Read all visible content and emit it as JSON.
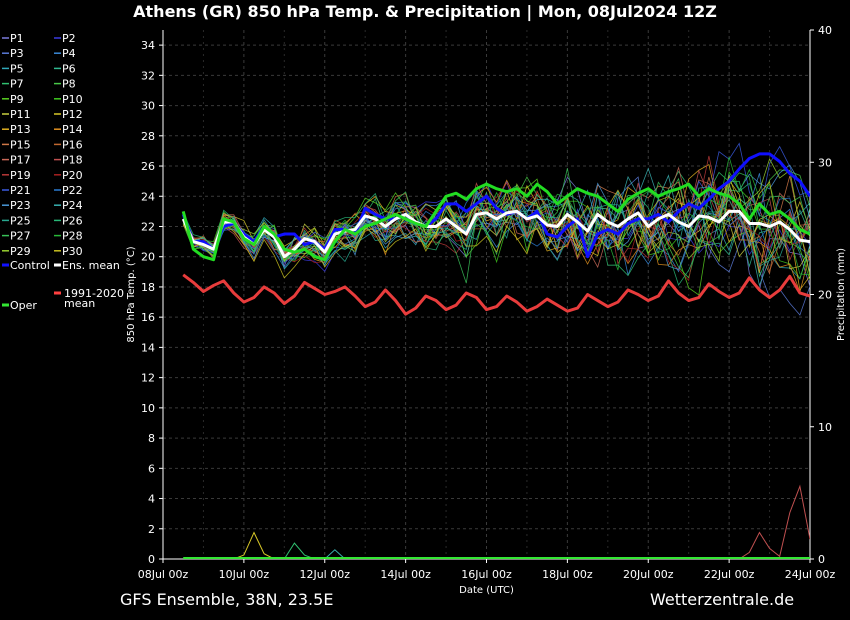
{
  "title": "Athens  (GR)  850 hPa Temp. & Precipitation | Mon, 08Jul2024 12Z",
  "footer_left": "GFS Ensemble, 38N, 23.5E",
  "footer_right": "Wetterzentrale.de",
  "chart_data": {
    "type": "line",
    "xlabel": "Date (UTC)",
    "ylabel": "850 hPa Temp. (°C)",
    "ylabel_right": "Precipitation (mm)",
    "x_ticks": [
      "08Jul 00z",
      "10Jul 00z",
      "12Jul 00z",
      "14Jul 00z",
      "16Jul 00z",
      "18Jul 00z",
      "20Jul 00z",
      "22Jul 00z",
      "24Jul 00z"
    ],
    "xlim_days": [
      0,
      16
    ],
    "ylim": [
      0,
      35
    ],
    "y_ticks": [
      0,
      2,
      4,
      6,
      8,
      10,
      12,
      14,
      16,
      18,
      20,
      22,
      24,
      26,
      28,
      30,
      32,
      34
    ],
    "ylim_right": [
      0,
      40
    ],
    "y_ticks_right": [
      0,
      10,
      20,
      30,
      40
    ],
    "grid": true,
    "legend_position": "left",
    "legend": [
      {
        "name": "P1",
        "color": "#7a7adc"
      },
      {
        "name": "P2",
        "color": "#3a3ae0"
      },
      {
        "name": "P3",
        "color": "#5a7ad8"
      },
      {
        "name": "P4",
        "color": "#3a8ad8"
      },
      {
        "name": "P5",
        "color": "#30a8b8"
      },
      {
        "name": "P6",
        "color": "#30b890"
      },
      {
        "name": "P7",
        "color": "#30c070"
      },
      {
        "name": "P8",
        "color": "#48c848"
      },
      {
        "name": "P9",
        "color": "#58d020"
      },
      {
        "name": "P10",
        "color": "#40c820"
      },
      {
        "name": "P11",
        "color": "#c8d040"
      },
      {
        "name": "P12",
        "color": "#d8c828"
      },
      {
        "name": "P13",
        "color": "#e0b020"
      },
      {
        "name": "P14",
        "color": "#e09020"
      },
      {
        "name": "P15",
        "color": "#d07848"
      },
      {
        "name": "P16",
        "color": "#c06830"
      },
      {
        "name": "P17",
        "color": "#c86858"
      },
      {
        "name": "P18",
        "color": "#c05050"
      },
      {
        "name": "P19",
        "color": "#b83838"
      },
      {
        "name": "P20",
        "color": "#a82020"
      },
      {
        "name": "P21",
        "color": "#3a5ae0"
      },
      {
        "name": "P22",
        "color": "#2a7ad0"
      },
      {
        "name": "P23",
        "color": "#4a98d8"
      },
      {
        "name": "P24",
        "color": "#38b0b0"
      },
      {
        "name": "P25",
        "color": "#28a890"
      },
      {
        "name": "P26",
        "color": "#28b878"
      },
      {
        "name": "P27",
        "color": "#38c058"
      },
      {
        "name": "P28",
        "color": "#28b838"
      },
      {
        "name": "P29",
        "color": "#98d030"
      },
      {
        "name": "P30",
        "color": "#c8c020"
      },
      {
        "name": "Control",
        "color": "#1010ff",
        "bold": true
      },
      {
        "name": "Ens. mean",
        "color": "#ffffff",
        "bold": true
      },
      {
        "name": "1991-2020 mean",
        "color": "#ff4040",
        "bold": true
      },
      {
        "name": "Oper",
        "color": "#33e633",
        "bold": true
      }
    ],
    "x_days": [
      0.5,
      0.75,
      1,
      1.25,
      1.5,
      1.75,
      2,
      2.25,
      2.5,
      2.75,
      3,
      3.25,
      3.5,
      3.75,
      4,
      4.25,
      4.5,
      4.75,
      5,
      5.25,
      5.5,
      5.75,
      6,
      6.25,
      6.5,
      6.75,
      7,
      7.25,
      7.5,
      7.75,
      8,
      8.25,
      8.5,
      8.75,
      9,
      9.25,
      9.5,
      9.75,
      10,
      10.25,
      10.5,
      10.75,
      11,
      11.25,
      11.5,
      11.75,
      12,
      12.25,
      12.5,
      12.75,
      13,
      13.25,
      13.5,
      13.75,
      14,
      14.25,
      14.5,
      14.75,
      15,
      15.25,
      15.5,
      15.75,
      16
    ],
    "series": [
      {
        "name": "Control",
        "values": [
          22.8,
          21.0,
          21.0,
          20.5,
          22.0,
          22.2,
          21.5,
          21.0,
          22.0,
          21.3,
          21.5,
          21.5,
          20.8,
          21.0,
          20.5,
          21.8,
          21.8,
          21.5,
          23.2,
          22.8,
          22.5,
          22.5,
          22.8,
          22.2,
          22.0,
          22.5,
          23.5,
          23.5,
          23.0,
          23.5,
          24.0,
          23.2,
          22.8,
          23.0,
          22.5,
          23.0,
          21.5,
          21.3,
          22.0,
          22.5,
          20.0,
          21.5,
          21.8,
          21.5,
          22.2,
          22.5,
          22.5,
          22.8,
          22.3,
          23.0,
          23.5,
          23.2,
          23.8,
          24.5,
          25.0,
          25.8,
          26.5,
          26.8,
          26.8,
          26.3,
          25.5,
          25.0,
          24.0
        ]
      },
      {
        "name": "Ens. mean",
        "values": [
          22.5,
          21.0,
          20.8,
          20.5,
          22.3,
          22.3,
          21.3,
          20.8,
          21.8,
          21.3,
          20.0,
          20.5,
          21.2,
          21.0,
          20.3,
          21.5,
          21.7,
          21.8,
          22.7,
          22.5,
          22.0,
          22.5,
          22.8,
          22.3,
          22.0,
          22.0,
          22.5,
          22.0,
          21.5,
          22.8,
          22.9,
          22.5,
          22.9,
          23.0,
          22.5,
          22.7,
          22.1,
          22.0,
          22.8,
          22.3,
          21.7,
          22.8,
          22.3,
          22.0,
          22.5,
          22.9,
          22.0,
          22.5,
          22.8,
          22.3,
          22.0,
          22.7,
          22.6,
          22.3,
          23.0,
          23.0,
          22.2,
          22.2,
          22.0,
          22.3,
          21.8,
          21.1,
          21.0
        ]
      },
      {
        "name": "Oper",
        "values": [
          23.0,
          20.5,
          20.0,
          19.8,
          22.5,
          22.3,
          21.2,
          20.8,
          22.0,
          21.5,
          20.5,
          20.3,
          20.5,
          20.0,
          19.8,
          21.0,
          21.8,
          21.5,
          22.0,
          22.2,
          22.5,
          22.8,
          22.5,
          22.2,
          22.0,
          23.0,
          24.0,
          24.2,
          23.8,
          24.5,
          24.8,
          24.5,
          24.3,
          24.5,
          24.0,
          24.8,
          24.3,
          23.5,
          24.0,
          24.5,
          24.2,
          24.0,
          23.5,
          23.0,
          23.8,
          24.2,
          24.5,
          24.0,
          24.3,
          24.5,
          24.8,
          24.0,
          24.5,
          24.2,
          24.0,
          23.5,
          22.5,
          23.5,
          22.8,
          23.0,
          22.5,
          21.8,
          21.5
        ]
      },
      {
        "name": "1991-2020 mean",
        "values": [
          18.8,
          18.3,
          17.7,
          18.1,
          18.4,
          17.6,
          17.0,
          17.3,
          18.0,
          17.6,
          16.9,
          17.4,
          18.3,
          17.9,
          17.5,
          17.7,
          18.0,
          17.4,
          16.7,
          17.0,
          17.8,
          17.1,
          16.2,
          16.6,
          17.4,
          17.1,
          16.5,
          16.8,
          17.6,
          17.3,
          16.5,
          16.7,
          17.4,
          17.0,
          16.4,
          16.7,
          17.2,
          16.8,
          16.4,
          16.6,
          17.5,
          17.1,
          16.7,
          17.0,
          17.8,
          17.5,
          17.1,
          17.4,
          18.4,
          17.6,
          17.1,
          17.3,
          18.2,
          17.7,
          17.3,
          17.6,
          18.6,
          17.8,
          17.3,
          17.8,
          18.7,
          17.6,
          17.4
        ]
      }
    ],
    "precipitation_series": [
      {
        "name": "P18",
        "days": [
          14.25,
          14.5,
          14.75,
          15.0,
          15.25,
          15.5,
          15.75,
          16.0
        ],
        "values": [
          0.0,
          0.5,
          2.0,
          0.8,
          0.2,
          3.5,
          5.5,
          1.5
        ]
      },
      {
        "name": "P12",
        "days": [
          1.75,
          2.0,
          2.25,
          2.5,
          2.75
        ],
        "values": [
          0.0,
          0.3,
          2.0,
          0.4,
          0.0
        ]
      },
      {
        "name": "P7",
        "days": [
          3.0,
          3.25,
          3.5,
          3.75
        ],
        "values": [
          0.0,
          1.2,
          0.3,
          0.0
        ]
      },
      {
        "name": "P24",
        "days": [
          4.0,
          4.25,
          4.5
        ],
        "values": [
          0.0,
          0.7,
          0.0
        ]
      }
    ]
  }
}
